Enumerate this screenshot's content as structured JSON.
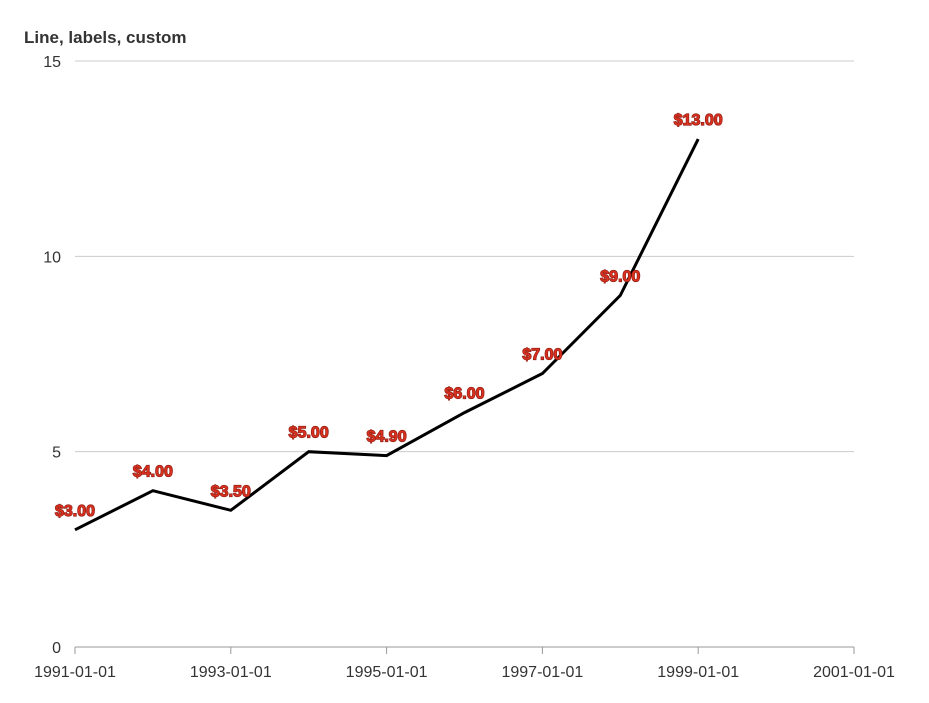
{
  "chart_data": {
    "type": "line",
    "title": "Line, labels, custom",
    "xlabel": "",
    "ylabel": "",
    "x": [
      "1991-01-01",
      "1992-01-01",
      "1993-01-01",
      "1994-01-01",
      "1995-01-01",
      "1996-01-01",
      "1997-01-01",
      "1998-01-01",
      "1999-01-01"
    ],
    "values": [
      3.0,
      4.0,
      3.5,
      5.0,
      4.9,
      6.0,
      7.0,
      9.0,
      13.0
    ],
    "data_labels": [
      "$3.00",
      "$4.00",
      "$3.50",
      "$5.00",
      "$4.90",
      "$6.00",
      "$7.00",
      "$9.00",
      "$13.00"
    ],
    "xlim": [
      "1991-01-01",
      "2001-01-01"
    ],
    "ylim": [
      0,
      15
    ],
    "x_ticks": [
      "1991-01-01",
      "1993-01-01",
      "1995-01-01",
      "1997-01-01",
      "1999-01-01",
      "2001-01-01"
    ],
    "y_ticks": [
      0,
      5,
      10,
      15
    ],
    "grid": "horizontal",
    "colors": {
      "line": "#000000",
      "label_fill": "#d7301f",
      "label_stroke": "#8b1a10",
      "grid": "#cccccc",
      "axis": "#999999",
      "text": "#333333"
    }
  }
}
